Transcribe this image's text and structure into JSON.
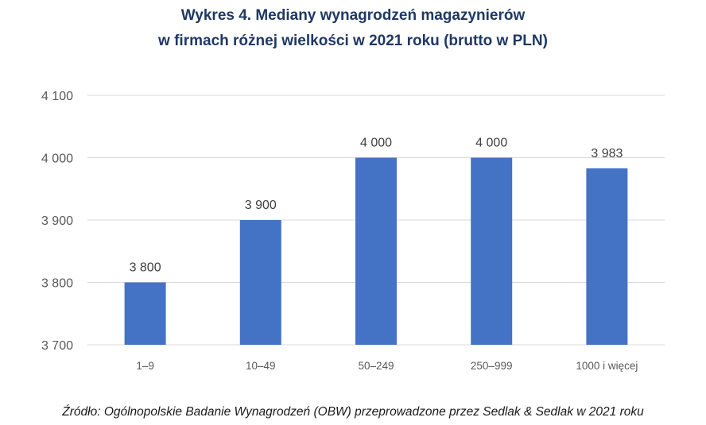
{
  "chart_data": {
    "type": "bar",
    "title_lines": [
      "Wykres 4. Mediany wynagrodzeń magazynierów",
      "w firmach różnej wielkości w 2021 roku (brutto w PLN)"
    ],
    "categories": [
      "1–9",
      "10–49",
      "50–249",
      "250–999",
      "1000 i więcej"
    ],
    "values": [
      3800,
      3900,
      4000,
      4000,
      3983
    ],
    "data_labels": [
      "3 800",
      "3 900",
      "4 000",
      "4 000",
      "3 983"
    ],
    "ylim": [
      3700,
      4100
    ],
    "yticks": [
      3700,
      3800,
      3900,
      4000,
      4100
    ],
    "ytick_labels": [
      "3 700",
      "3 800",
      "3 900",
      "4 000",
      "4 100"
    ],
    "xlabel": "",
    "ylabel": "",
    "grid": true,
    "legend": "none",
    "bar_color": "#4472C4"
  },
  "source": "Źródło: Ogólnopolskie Badanie Wynagrodzeń (OBW) przeprowadzone przez Sedlak & Sedlak w 2021 roku"
}
